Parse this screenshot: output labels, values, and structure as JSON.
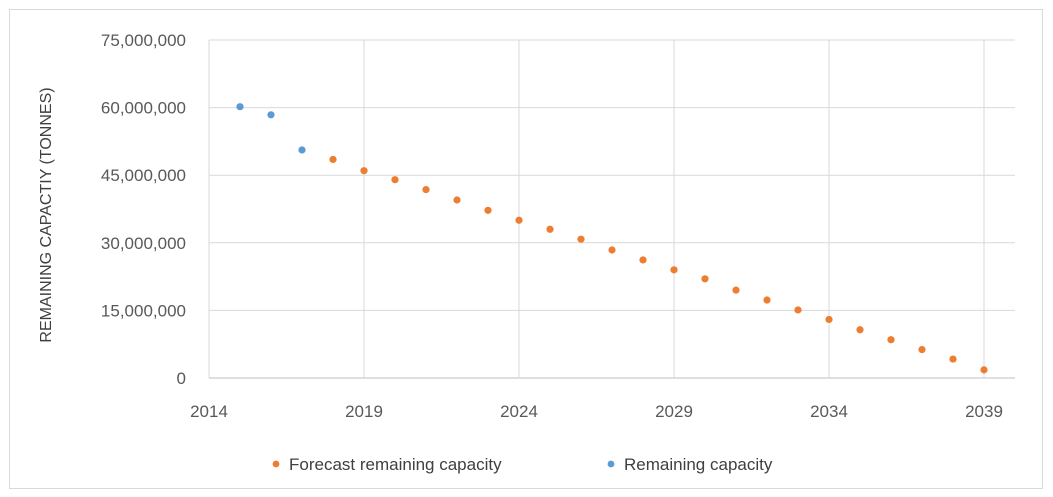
{
  "chart_data": {
    "type": "scatter",
    "title": "",
    "xlabel": "",
    "ylabel": "REMAINING CAPACTIY (TONNES)",
    "xlim": [
      2014,
      2040
    ],
    "ylim": [
      0,
      75000000
    ],
    "x_ticks": [
      "2014",
      "2019",
      "2024",
      "2029",
      "2034",
      "2039"
    ],
    "y_ticks": [
      "0",
      "15,000,000",
      "30,000,000",
      "45,000,000",
      "60,000,000",
      "75,000,000"
    ],
    "grid": true,
    "legend_position": "bottom",
    "series": [
      {
        "name": "Forecast remaining capacity",
        "color": "#ed7d31",
        "x": [
          2018,
          2019,
          2020,
          2021,
          2022,
          2023,
          2024,
          2025,
          2026,
          2027,
          2028,
          2029,
          2030,
          2031,
          2032,
          2033,
          2034,
          2035,
          2036,
          2037,
          2038,
          2039
        ],
        "y": [
          48500000,
          46000000,
          44000000,
          41800000,
          39500000,
          37200000,
          35000000,
          33000000,
          30800000,
          28400000,
          26200000,
          24000000,
          22000000,
          19500000,
          17300000,
          15100000,
          13000000,
          10700000,
          8500000,
          6300000,
          4200000,
          1800000
        ]
      },
      {
        "name": "Remaining capacity",
        "color": "#5b9bd5",
        "x": [
          2015,
          2016,
          2017
        ],
        "y": [
          60200000,
          58400000,
          50600000
        ]
      }
    ]
  }
}
